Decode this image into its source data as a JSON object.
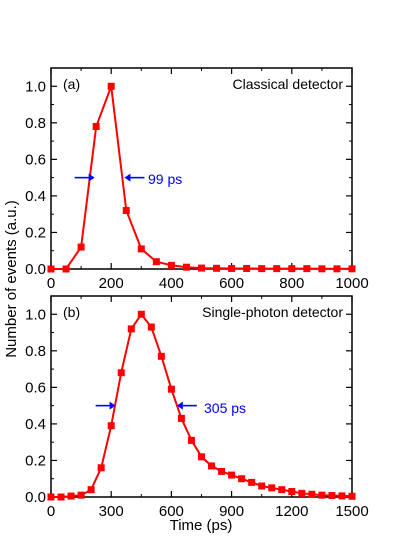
{
  "colors": {
    "series": "#ff0000",
    "annotation": "#0000ff",
    "axes": "#000000"
  },
  "shared": {
    "ylabel": "Number of events (a.u.)"
  },
  "chart_data": [
    {
      "type": "line",
      "panel_label": "(a)",
      "title": "Classical detector",
      "xlabel": "",
      "ylabel": "Number of events (a.u.)",
      "xlim": [
        0,
        1000
      ],
      "ylim": [
        0,
        1.1
      ],
      "xticks": [
        0,
        200,
        400,
        600,
        800,
        1000
      ],
      "yticks": [
        0.0,
        0.2,
        0.4,
        0.6,
        0.8,
        1.0
      ],
      "marker": "square",
      "series": [
        {
          "x": [
            0,
            50,
            100,
            150,
            200,
            250,
            300,
            350,
            400,
            450,
            500,
            550,
            600,
            650,
            700,
            750,
            800,
            850,
            900,
            950,
            1000
          ],
          "y": [
            0.0,
            0.0,
            0.12,
            0.78,
            1.0,
            0.32,
            0.11,
            0.04,
            0.02,
            0.01,
            0.005,
            0.004,
            0.003,
            0.003,
            0.002,
            0.002,
            0.002,
            0.002,
            0.001,
            0.001,
            0.001
          ]
        }
      ],
      "fwhm": {
        "label": "99 ps",
        "left_x": 145,
        "right_x": 244,
        "y": 0.5
      }
    },
    {
      "type": "line",
      "panel_label": "(b)",
      "title": "Single-photon detector",
      "xlabel": "Time (ps)",
      "ylabel": "Number of events (a.u.)",
      "xlim": [
        0,
        1500
      ],
      "ylim": [
        0,
        1.1
      ],
      "xticks": [
        0,
        300,
        600,
        900,
        1200,
        1500
      ],
      "yticks": [
        0.0,
        0.2,
        0.4,
        0.6,
        0.8,
        1.0
      ],
      "marker": "square",
      "series": [
        {
          "x": [
            0,
            50,
            100,
            150,
            200,
            250,
            300,
            350,
            400,
            450,
            500,
            550,
            600,
            650,
            700,
            750,
            800,
            850,
            900,
            950,
            1000,
            1050,
            1100,
            1150,
            1200,
            1250,
            1300,
            1350,
            1400,
            1450,
            1500
          ],
          "y": [
            0.0,
            0.0,
            0.005,
            0.01,
            0.04,
            0.16,
            0.39,
            0.68,
            0.92,
            1.0,
            0.93,
            0.77,
            0.59,
            0.43,
            0.31,
            0.22,
            0.17,
            0.14,
            0.12,
            0.1,
            0.08,
            0.06,
            0.05,
            0.04,
            0.03,
            0.02,
            0.015,
            0.01,
            0.008,
            0.006,
            0.004
          ]
        }
      ],
      "fwhm": {
        "label": "305 ps",
        "left_x": 322,
        "right_x": 627,
        "y": 0.5
      }
    }
  ]
}
